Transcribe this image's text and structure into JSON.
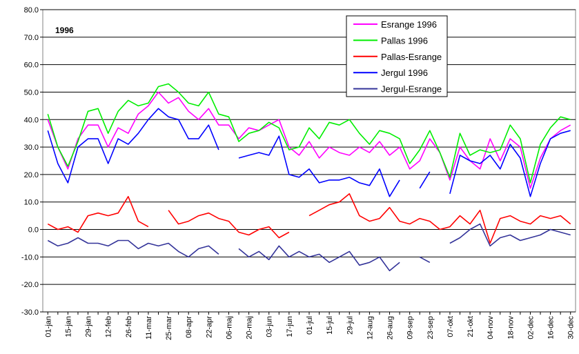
{
  "chart_data": {
    "type": "line",
    "title": "1996",
    "categories": [
      "01-jan",
      null,
      "15-jan",
      null,
      "29-jan",
      null,
      "12-feb",
      null,
      "26-feb",
      null,
      "11-mar",
      null,
      "25-mar",
      null,
      "08-apr",
      null,
      "22-apr",
      null,
      "06-maj",
      null,
      "20-maj",
      null,
      "03-jun",
      null,
      "17-jun",
      null,
      "01-jul",
      null,
      "15-jul",
      null,
      "29-jul",
      null,
      "12-aug",
      null,
      "26-aug",
      null,
      "09-sep",
      null,
      "23-sep",
      null,
      "07-okt",
      null,
      "21-okt",
      null,
      "04-nov",
      null,
      "18-nov",
      null,
      "02-dec",
      null,
      "16-dec",
      null,
      "30-dec"
    ],
    "series": [
      {
        "name": "Esrange 1996",
        "color": "#ff00ff",
        "values": [
          40,
          30,
          22,
          33,
          38,
          38,
          30,
          37,
          35,
          42,
          45,
          50,
          46,
          48,
          43,
          40,
          44,
          38,
          38,
          33,
          37,
          36,
          38,
          40,
          30,
          27,
          32,
          26,
          30,
          28,
          27,
          30,
          28,
          32,
          27,
          30,
          22,
          25,
          33,
          28,
          18,
          30,
          25,
          22,
          33,
          25,
          33,
          30,
          15,
          26,
          33,
          36,
          38
        ]
      },
      {
        "name": "Pallas 1996",
        "color": "#00ee00",
        "values": [
          42,
          30,
          23,
          32,
          43,
          44,
          35,
          43,
          47,
          45,
          46,
          52,
          53,
          50,
          46,
          45,
          50,
          42,
          41,
          32,
          35,
          36,
          39,
          37,
          29,
          30,
          37,
          33,
          39,
          38,
          40,
          35,
          31,
          36,
          35,
          33,
          24,
          29,
          36,
          28,
          19,
          35,
          27,
          29,
          28,
          29,
          38,
          33,
          17,
          31,
          37,
          41,
          40
        ]
      },
      {
        "name": "Pallas-Esrange",
        "color": "#ff0000",
        "values": [
          2,
          0,
          1,
          -1,
          5,
          6,
          5,
          6,
          12,
          3,
          1,
          null,
          7,
          2,
          3,
          5,
          6,
          4,
          3,
          -1,
          -2,
          0,
          1,
          -3,
          -1,
          null,
          5,
          7,
          9,
          10,
          13,
          5,
          3,
          4,
          8,
          3,
          2,
          4,
          3,
          0,
          1,
          5,
          2,
          7,
          -5,
          4,
          5,
          3,
          2,
          5,
          4,
          5,
          2
        ]
      },
      {
        "name": "Jergul 1996",
        "color": "#0000ff",
        "values": [
          36,
          24,
          17,
          30,
          33,
          33,
          24,
          33,
          31,
          35,
          40,
          44,
          41,
          40,
          33,
          33,
          38,
          29,
          null,
          26,
          27,
          28,
          27,
          34,
          20,
          19,
          22,
          17,
          18,
          18,
          19,
          17,
          16,
          22,
          12,
          18,
          null,
          15,
          21,
          null,
          13,
          27,
          25,
          24,
          27,
          22,
          31,
          26,
          12,
          24,
          33,
          35,
          36
        ]
      },
      {
        "name": "Jergul-Esrange",
        "color": "#333399",
        "values": [
          -4,
          -6,
          -5,
          -3,
          -5,
          -5,
          -6,
          -4,
          -4,
          -7,
          -5,
          -6,
          -5,
          -8,
          -10,
          -7,
          -6,
          -9,
          null,
          -7,
          -10,
          -8,
          -11,
          -6,
          -10,
          -8,
          -10,
          -9,
          -12,
          -10,
          -8,
          -13,
          -12,
          -10,
          -15,
          -12,
          null,
          -10,
          -12,
          null,
          -5,
          -3,
          0,
          2,
          -6,
          -3,
          -2,
          -4,
          -3,
          -2,
          0,
          -1,
          -2
        ]
      }
    ],
    "ylim": [
      -30,
      80
    ],
    "yticks": [
      {
        "value": -30,
        "label": "-30.0"
      },
      {
        "value": -20,
        "label": "-20.0"
      },
      {
        "value": -10,
        "label": "-10.0"
      },
      {
        "value": 0,
        "label": "0.0"
      },
      {
        "value": 10,
        "label": "10.0"
      },
      {
        "value": 20,
        "label": "20.0"
      },
      {
        "value": 30,
        "label": "30.0"
      },
      {
        "value": 40,
        "label": "40.0"
      },
      {
        "value": 50,
        "label": "50.0"
      },
      {
        "value": 60,
        "label": "60.0"
      },
      {
        "value": 70,
        "label": "70.0"
      },
      {
        "value": 80,
        "label": "80.0"
      }
    ],
    "grid": true,
    "legend": "top-right"
  }
}
